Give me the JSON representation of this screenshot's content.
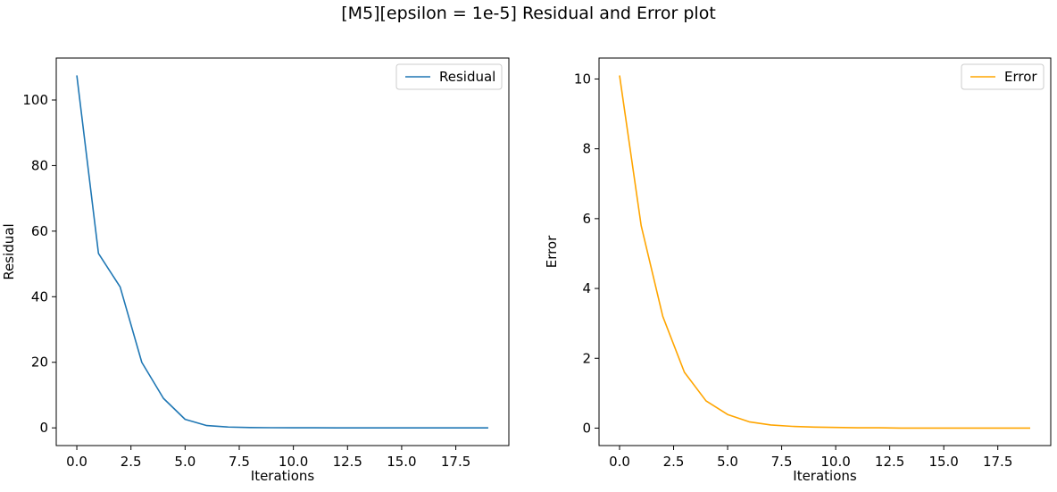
{
  "figure": {
    "title": "[M5][epsilon = 1e-5] Residual and Error plot"
  },
  "chart_data": [
    {
      "type": "line",
      "xlabel": "Iterations",
      "ylabel": "Residual",
      "xlim": [
        -0.95,
        19.95
      ],
      "ylim": [
        -5.4,
        112.8
      ],
      "xticks": [
        0.0,
        2.5,
        5.0,
        7.5,
        10.0,
        12.5,
        15.0,
        17.5
      ],
      "xtick_labels": [
        "0.0",
        "2.5",
        "5.0",
        "7.5",
        "10.0",
        "12.5",
        "15.0",
        "17.5"
      ],
      "yticks": [
        0,
        20,
        40,
        60,
        80,
        100
      ],
      "ytick_labels": [
        "0",
        "20",
        "40",
        "60",
        "80",
        "100"
      ],
      "legend_position": "top-right",
      "grid": false,
      "series": [
        {
          "name": "Residual",
          "color": "#1f77b4",
          "x": [
            0,
            1,
            2,
            3,
            4,
            5,
            6,
            7,
            8,
            9,
            10,
            11,
            12,
            13,
            14,
            15,
            16,
            17,
            18,
            19
          ],
          "y": [
            107.5,
            53.2,
            43.0,
            20.0,
            9.0,
            2.6,
            0.7,
            0.25,
            0.1,
            0.05,
            0.03,
            0.02,
            0.01,
            0.01,
            0.01,
            0.0,
            0.0,
            0.0,
            0.0,
            0.0
          ]
        }
      ]
    },
    {
      "type": "line",
      "xlabel": "Iterations",
      "ylabel": "Error",
      "xlim": [
        -0.95,
        19.95
      ],
      "ylim": [
        -0.5,
        10.6
      ],
      "xticks": [
        0.0,
        2.5,
        5.0,
        7.5,
        10.0,
        12.5,
        15.0,
        17.5
      ],
      "xtick_labels": [
        "0.0",
        "2.5",
        "5.0",
        "7.5",
        "10.0",
        "12.5",
        "15.0",
        "17.5"
      ],
      "yticks": [
        0,
        2,
        4,
        6,
        8,
        10
      ],
      "ytick_labels": [
        "0",
        "2",
        "4",
        "6",
        "8",
        "10"
      ],
      "legend_position": "top-right",
      "grid": false,
      "series": [
        {
          "name": "Error",
          "color": "#ffa500",
          "x": [
            0,
            1,
            2,
            3,
            4,
            5,
            6,
            7,
            8,
            9,
            10,
            11,
            12,
            13,
            14,
            15,
            16,
            17,
            18,
            19
          ],
          "y": [
            10.1,
            5.8,
            3.2,
            1.6,
            0.78,
            0.39,
            0.18,
            0.09,
            0.05,
            0.03,
            0.02,
            0.01,
            0.01,
            0.0,
            0.0,
            0.0,
            0.0,
            0.0,
            0.0,
            0.0
          ]
        }
      ]
    }
  ]
}
